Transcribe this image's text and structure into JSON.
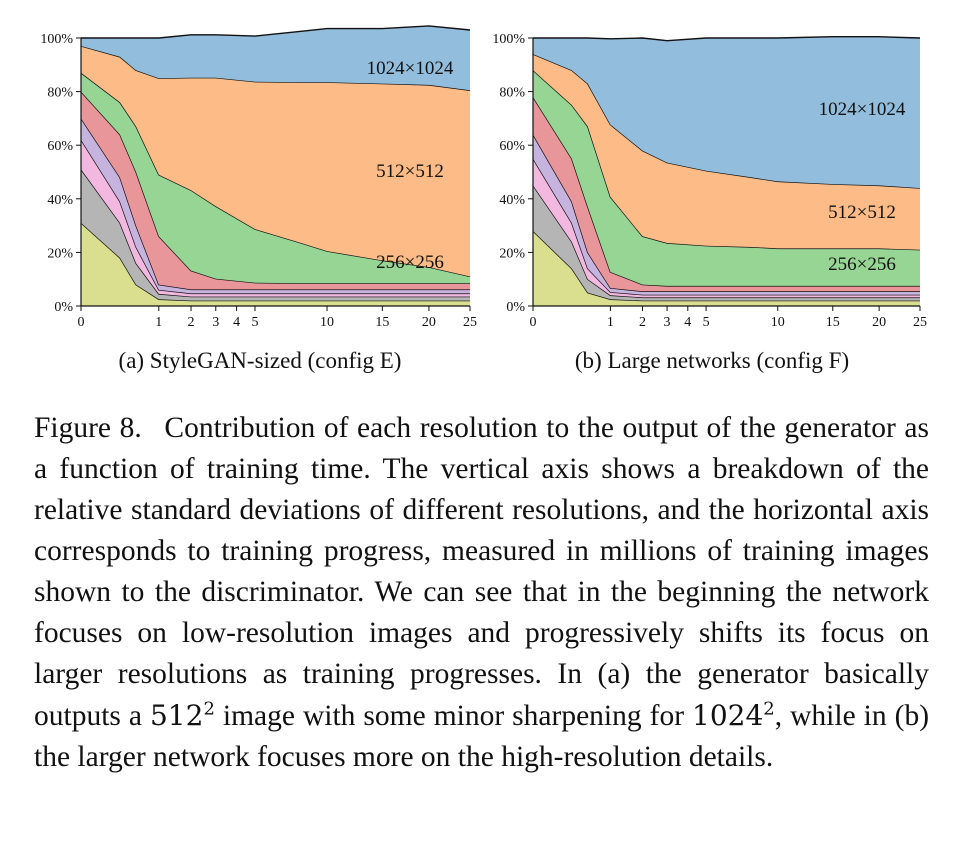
{
  "caption": {
    "figure_label": "Figure 8.",
    "part1": "Contribution of each resolution to the output of the generator as a function of training time. The vertical axis shows a breakdown of the relative standard deviations of different resolutions, and the horizontal axis corresponds to training progress, measured in millions of training images shown to the discriminator. We can see that in the beginning the network focuses on low-resolution images and progressively shifts its focus on larger resolutions as training progresses. In (a) the generator basically outputs a",
    "math1_base": "512",
    "math1_exp": "2",
    "part2": "image with some minor sharpening for",
    "math2_base": "1024",
    "math2_exp": "2",
    "part3": ", while in (b) the larger network focuses more on the high-resolution details."
  },
  "chart_data": [
    {
      "type": "area",
      "subtitle": "(a) StyleGAN-sized (config E)",
      "x_scale": "sqrt",
      "xlim": [
        0,
        25
      ],
      "ylim": [
        0,
        100
      ],
      "y_ticks": [
        "0%",
        "20%",
        "40%",
        "60%",
        "80%",
        "100%"
      ],
      "x_ticks": [
        "0",
        "1",
        "2",
        "3",
        "4",
        "5",
        "10",
        "15",
        "20",
        "25"
      ],
      "x": [
        0,
        0.25,
        0.5,
        1,
        2,
        3,
        5,
        8,
        10,
        15,
        20,
        25
      ],
      "series": [
        {
          "name": "",
          "color": "#d9df8e",
          "values": [
            31,
            18,
            8,
            2.5,
            2,
            2,
            2,
            2,
            2,
            2,
            2,
            2
          ]
        },
        {
          "name": "",
          "color": "#b5b5b5",
          "values": [
            20,
            13,
            8,
            2,
            1.5,
            1.5,
            1.5,
            1.5,
            1.5,
            1.5,
            1.5,
            1.5
          ]
        },
        {
          "name": "",
          "color": "#f2b8e0",
          "values": [
            11,
            8,
            6,
            1.5,
            1.2,
            1.2,
            1.2,
            1.2,
            1.2,
            1.2,
            1.2,
            1.2
          ]
        },
        {
          "name": "",
          "color": "#c6b3de",
          "values": [
            8,
            9,
            8,
            2,
            1.5,
            1.5,
            1.5,
            1.5,
            1.5,
            1.5,
            1.5,
            1.5
          ]
        },
        {
          "name": "",
          "color": "#e8969a",
          "values": [
            10,
            16,
            20,
            18,
            7,
            4,
            2.5,
            2.3,
            2.3,
            2.3,
            2.3,
            2.3
          ]
        },
        {
          "name": "256×256",
          "color": "#97d595",
          "values": [
            7,
            12,
            17,
            23,
            30,
            27,
            20,
            15,
            12,
            8.5,
            6,
            2.5
          ]
        },
        {
          "name": "512×512",
          "color": "#fdbb88",
          "values": [
            10,
            17,
            21,
            36,
            42,
            48,
            55,
            60,
            63,
            66,
            68,
            69.5
          ]
        },
        {
          "name": "1024×1024",
          "color": "#93bddc",
          "values": [
            3,
            7,
            12,
            15,
            16,
            16,
            17,
            19,
            20,
            20.5,
            22,
            22.5
          ]
        }
      ],
      "annotations": [
        "1024×1024",
        "512×512",
        "256×256"
      ]
    },
    {
      "type": "area",
      "subtitle": "(b) Large networks (config F)",
      "x_scale": "sqrt",
      "xlim": [
        0,
        25
      ],
      "ylim": [
        0,
        100
      ],
      "y_ticks": [
        "0%",
        "20%",
        "40%",
        "60%",
        "80%",
        "100%"
      ],
      "x_ticks": [
        "0",
        "1",
        "2",
        "3",
        "4",
        "5",
        "10",
        "15",
        "20",
        "25"
      ],
      "x": [
        0,
        0.25,
        0.5,
        1,
        2,
        3,
        5,
        8,
        10,
        15,
        20,
        25
      ],
      "series": [
        {
          "name": "",
          "color": "#d9df8e",
          "values": [
            28,
            14,
            5,
            2.5,
            2,
            2,
            2,
            2,
            2,
            2,
            2,
            2
          ]
        },
        {
          "name": "",
          "color": "#b5b5b5",
          "values": [
            17,
            10,
            5,
            1.5,
            1.2,
            1.2,
            1.2,
            1.2,
            1.2,
            1.2,
            1.2,
            1.2
          ]
        },
        {
          "name": "",
          "color": "#f2b8e0",
          "values": [
            10,
            7,
            4,
            1.2,
            1,
            1,
            1,
            1,
            1,
            1,
            1,
            1
          ]
        },
        {
          "name": "",
          "color": "#c6b3de",
          "values": [
            9,
            8,
            6,
            1.5,
            1.3,
            1.3,
            1.3,
            1.3,
            1.3,
            1.3,
            1.3,
            1.3
          ]
        },
        {
          "name": "",
          "color": "#e8969a",
          "values": [
            14,
            16,
            17,
            6,
            2.5,
            2,
            2,
            2,
            2,
            2,
            2,
            2
          ]
        },
        {
          "name": "256×256",
          "color": "#97d595",
          "values": [
            10,
            20,
            30,
            28,
            18,
            16,
            15,
            14.5,
            14,
            14,
            14,
            13.5
          ]
        },
        {
          "name": "512×512",
          "color": "#fdbb88",
          "values": [
            6,
            13,
            16,
            27,
            32,
            30,
            28,
            26,
            25,
            24,
            23.5,
            23
          ]
        },
        {
          "name": "1024×1024",
          "color": "#93bddc",
          "values": [
            6,
            12,
            17,
            32,
            42,
            45.5,
            49.5,
            52,
            53.5,
            55,
            55.5,
            56
          ]
        }
      ],
      "annotations": [
        "1024×1024",
        "512×512",
        "256×256"
      ]
    }
  ]
}
